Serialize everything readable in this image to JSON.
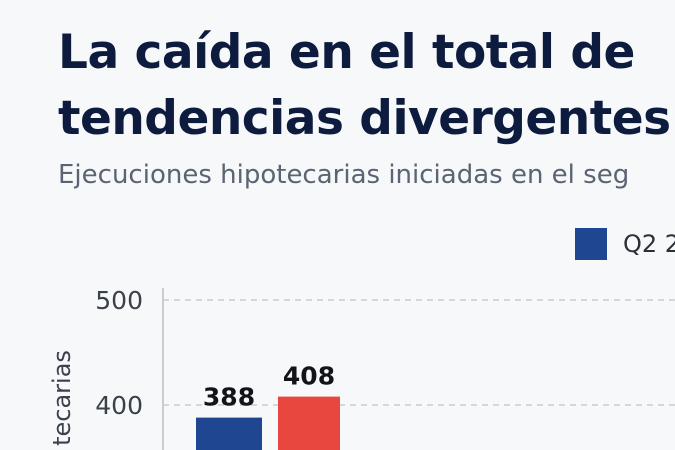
{
  "title_lines": [
    "La caída en el total de",
    "tendencias divergentes"
  ],
  "subtitle": "Ejecuciones hipotecarias iniciadas en el seg",
  "colors": {
    "series_1": "#1f4690",
    "series_2": "#e8473f",
    "grid": "#c9ccd2"
  },
  "chart_data": {
    "type": "bar",
    "title": "La caída en el total de tendencias divergentes",
    "subtitle": "Ejecuciones hipotecarias iniciadas en el seg",
    "ylabel": "tecarias",
    "xlabel": "",
    "ylim": [
      300,
      500
    ],
    "yticks": [
      400,
      500
    ],
    "grid": true,
    "legend_position": "top-right",
    "categories": [
      ""
    ],
    "series": [
      {
        "name": "Q2 2",
        "values": [
          388
        ],
        "color": "#1f4690"
      },
      {
        "values": [
          408
        ],
        "color": "#e8473f"
      }
    ]
  }
}
